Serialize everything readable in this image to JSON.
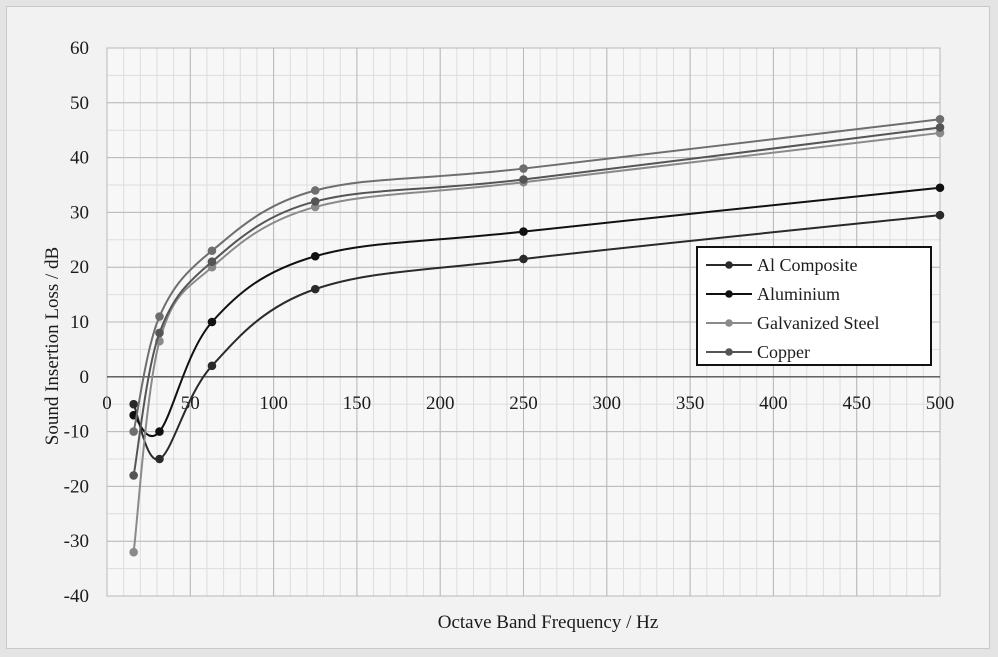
{
  "chart_data": {
    "type": "line",
    "title": "",
    "xlabel": "Octave Band Frequency / Hz",
    "ylabel": "Sound Insertion Loss / dB",
    "xlim": [
      0,
      500
    ],
    "ylim": [
      -40,
      60
    ],
    "xticks": [
      0,
      50,
      100,
      150,
      200,
      250,
      300,
      350,
      400,
      450,
      500
    ],
    "yticks": [
      -40,
      -30,
      -20,
      -10,
      0,
      10,
      20,
      30,
      40,
      50,
      60
    ],
    "grid": true,
    "legend_position": "right",
    "x": [
      16,
      31.5,
      63,
      125,
      250,
      500
    ],
    "series": [
      {
        "name": "Al Composite",
        "color": "#2a2a2a",
        "values": [
          -5,
          -15,
          2,
          16,
          21.5,
          29.5
        ]
      },
      {
        "name": "Aluminium",
        "color": "#111111",
        "values": [
          -7,
          -10,
          10,
          22,
          26.5,
          34.5
        ]
      },
      {
        "name": "Galvanized Steel",
        "color": "#8a8a8a",
        "values": [
          -32,
          6.5,
          20,
          31,
          35.5,
          44.5
        ]
      },
      {
        "name": "Copper",
        "color": "#555555",
        "values": [
          -18,
          8,
          21,
          32,
          36,
          45.5
        ]
      },
      {
        "name": "",
        "color": "#6e6e6e",
        "values": [
          -10,
          11,
          23,
          34,
          38,
          47
        ]
      }
    ]
  }
}
